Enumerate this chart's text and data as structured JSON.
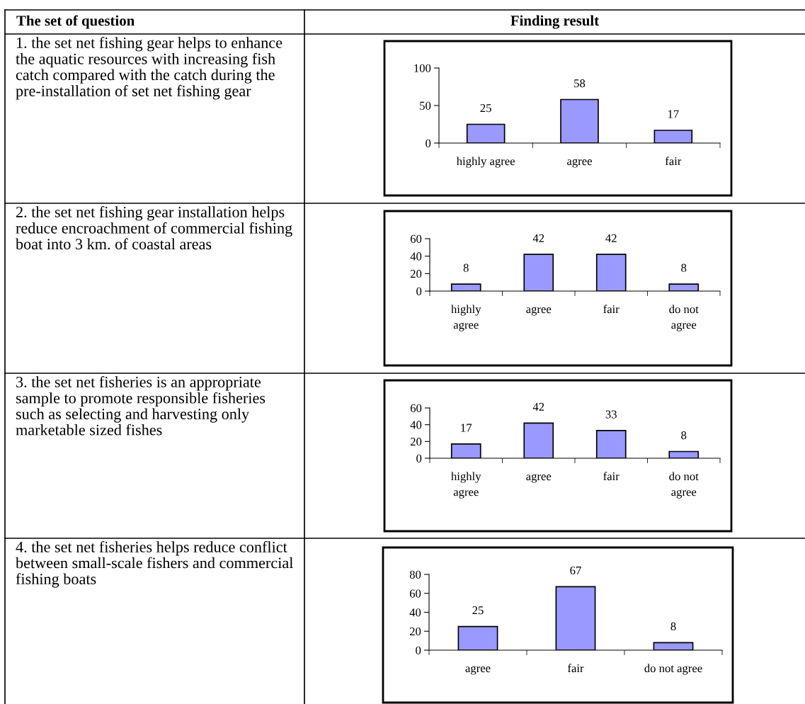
{
  "chart_data": [
    {
      "type": "other",
      "annotations": [
        "The set of question",
        "Finding result",
        "1. the set net fishing gear helps to enhance the aquatic resources with increasing fish catch compared with the catch during the pre-installation of set net fishing gear",
        "2. the set net fishing gear installation helps reduce encroachment of commercial fishing boat into 3 km. of coastal areas",
        "3. the set net fisheries is an appropriate sample to promote responsible fisheries such as selecting and harvesting only marketable sized fishes",
        "4. the set net fisheries helps reduce conflict between small-scale fishers and commercial fishing boats"
      ]
    },
    {
      "type": "bar",
      "categories": [
        "highly agree",
        "agree",
        "fair"
      ],
      "values": [
        25,
        58,
        17
      ],
      "color": "#9999ff",
      "ylim": [
        0,
        100
      ],
      "yticks": [
        0,
        50,
        100
      ],
      "data_labels": true,
      "grid": false,
      "legend": false
    },
    {
      "type": "bar",
      "categories": [
        "highly\nagree",
        "agree",
        "fair",
        "do not\nagree"
      ],
      "values": [
        8,
        42,
        42,
        8
      ],
      "color": "#9999ff",
      "ylim": [
        0,
        60
      ],
      "yticks": [
        0,
        20,
        40,
        60
      ],
      "data_labels": true,
      "grid": false,
      "legend": false
    },
    {
      "type": "bar",
      "categories": [
        "highly\nagree",
        "agree",
        "fair",
        "do not\nagree"
      ],
      "values": [
        17,
        42,
        33,
        8
      ],
      "color": "#9999ff",
      "ylim": [
        0,
        60
      ],
      "yticks": [
        0,
        20,
        40,
        60
      ],
      "data_labels": true,
      "grid": false,
      "legend": false
    },
    {
      "type": "bar",
      "categories": [
        "agree",
        "fair",
        "do not agree"
      ],
      "values": [
        25,
        67,
        8
      ],
      "color": "#9999ff",
      "ylim": [
        0,
        80
      ],
      "yticks": [
        0,
        20,
        40,
        60,
        80
      ],
      "data_labels": true,
      "grid": false,
      "legend": false
    }
  ]
}
